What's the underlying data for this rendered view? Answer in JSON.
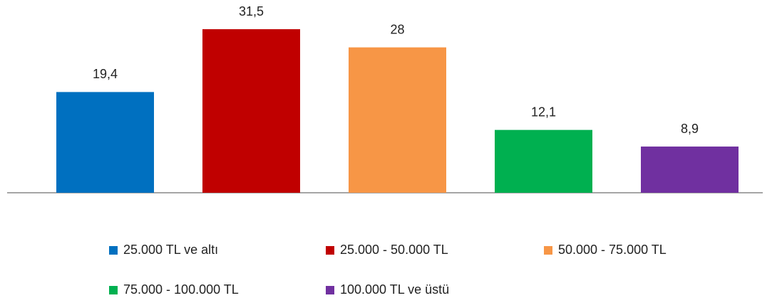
{
  "chart_data": {
    "type": "bar",
    "categories": [
      "25.000 TL ve altı",
      "25.000 - 50.000 TL",
      "50.000 - 75.000 TL",
      "75.000 - 100.000 TL",
      "100.000 TL ve üstü"
    ],
    "values": [
      19.4,
      31.5,
      28,
      12.1,
      8.9
    ],
    "value_labels": [
      "19,4",
      "31,5",
      "28",
      "12,1",
      "8,9"
    ],
    "colors": [
      "#0070c0",
      "#c00000",
      "#f79646",
      "#00b050",
      "#7030a0"
    ],
    "ylim": [
      0,
      35
    ],
    "legend": "bottom"
  }
}
